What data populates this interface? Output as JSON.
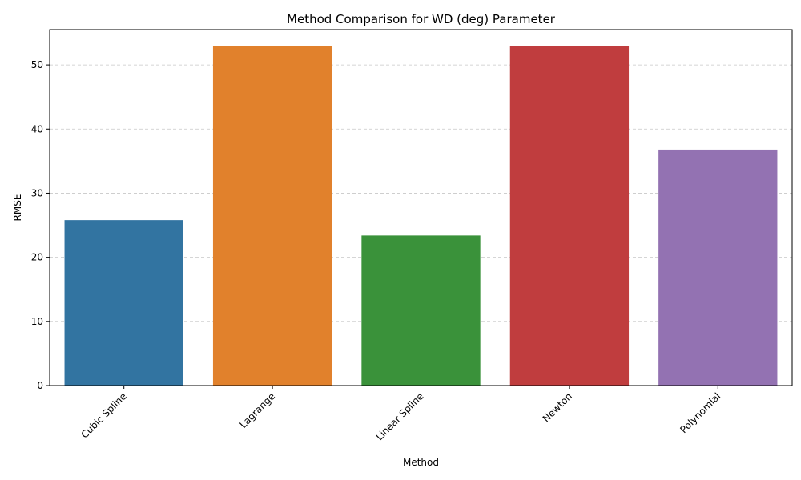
{
  "chart_data": {
    "type": "bar",
    "title": "Method Comparison for WD (deg) Parameter",
    "xlabel": "Method",
    "ylabel": "RMSE",
    "categories": [
      "Cubic Spline",
      "Lagrange",
      "Linear Spline",
      "Newton",
      "Polynomial"
    ],
    "values": [
      25.8,
      52.9,
      23.4,
      52.9,
      36.8
    ],
    "colors": [
      "#3274a1",
      "#e1812c",
      "#3a923a",
      "#c03d3e",
      "#9372b2"
    ],
    "ylim": [
      0,
      55.5
    ],
    "yticks": [
      0,
      10,
      20,
      30,
      40,
      50
    ],
    "ytick_labels": [
      "0",
      "10",
      "20",
      "30",
      "40",
      "50"
    ],
    "grid": "y-dashed",
    "x_tick_rotation": 45
  }
}
